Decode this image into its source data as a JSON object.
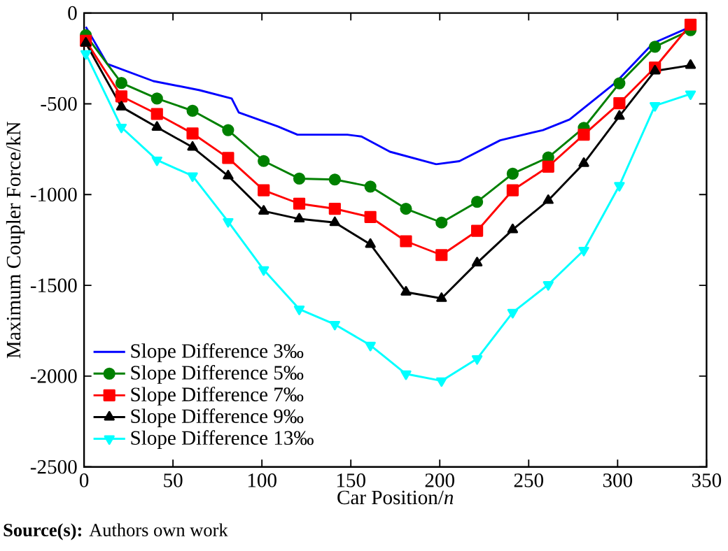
{
  "chart_data": {
    "type": "line",
    "xlabel": "Car Position/*n*",
    "ylabel": "Maximum Coupler Force/kN",
    "annotations": [
      "**Source(s):** Authors own work"
    ],
    "xlim": [
      0,
      350
    ],
    "ylim": [
      -2500,
      0
    ],
    "xticks": [
      0,
      50,
      100,
      150,
      200,
      250,
      300,
      350
    ],
    "yticks": [
      -2500,
      -2000,
      -1500,
      -1000,
      -500,
      0
    ],
    "grid": false,
    "legend": "bottom left",
    "line_style": "solid",
    "series": [
      {
        "name": "Slope Difference 3‰",
        "color": "#0000ff",
        "marker": "none",
        "x": [
          1,
          13,
          39,
          65,
          83,
          87,
          109,
          120,
          148,
          156,
          172,
          198,
          211,
          234,
          258,
          273,
          299,
          320,
          341
        ],
        "values": [
          -76,
          -280,
          -375,
          -425,
          -471,
          -548,
          -625,
          -670,
          -670,
          -680,
          -764,
          -833,
          -816,
          -701,
          -645,
          -586,
          -382,
          -166,
          -76
        ]
      },
      {
        "name": "Slope Difference 5‰",
        "color": "#008000",
        "marker": "circle",
        "x": [
          1,
          21,
          41,
          61,
          81,
          101,
          121,
          141,
          161,
          181,
          201,
          221,
          241,
          261,
          281,
          301,
          321,
          341
        ],
        "values": [
          -122,
          -385,
          -471,
          -538,
          -645,
          -815,
          -912,
          -917,
          -956,
          -1078,
          -1154,
          -1040,
          -885,
          -795,
          -632,
          -387,
          -186,
          -94
        ]
      },
      {
        "name": "Slope Difference 7‰",
        "color": "#ff0000",
        "marker": "square",
        "x": [
          1,
          21,
          41,
          61,
          81,
          101,
          121,
          141,
          161,
          181,
          201,
          221,
          241,
          261,
          281,
          301,
          321,
          341
        ],
        "values": [
          -153,
          -459,
          -556,
          -663,
          -798,
          -976,
          -1050,
          -1078,
          -1124,
          -1257,
          -1333,
          -1200,
          -976,
          -846,
          -670,
          -497,
          -300,
          -64
        ]
      },
      {
        "name": "Slope Difference 9‰",
        "color": "#000000",
        "marker": "triangle",
        "x": [
          1,
          21,
          41,
          61,
          81,
          101,
          121,
          141,
          161,
          181,
          201,
          221,
          241,
          261,
          281,
          301,
          321,
          341
        ],
        "values": [
          -166,
          -517,
          -629,
          -739,
          -897,
          -1091,
          -1134,
          -1154,
          -1274,
          -1537,
          -1572,
          -1376,
          -1193,
          -1032,
          -828,
          -568,
          -319,
          -288
        ]
      },
      {
        "name": "Slope Difference 13‰",
        "color": "#00ffff",
        "marker": "triangle_down",
        "x": [
          1,
          21,
          41,
          61,
          81,
          101,
          121,
          141,
          161,
          181,
          201,
          221,
          241,
          261,
          281,
          301,
          321,
          341
        ],
        "values": [
          -224,
          -629,
          -810,
          -897,
          -1149,
          -1414,
          -1631,
          -1715,
          -1830,
          -1988,
          -2026,
          -1904,
          -1649,
          -1496,
          -1307,
          -950,
          -510,
          -446
        ]
      }
    ]
  }
}
